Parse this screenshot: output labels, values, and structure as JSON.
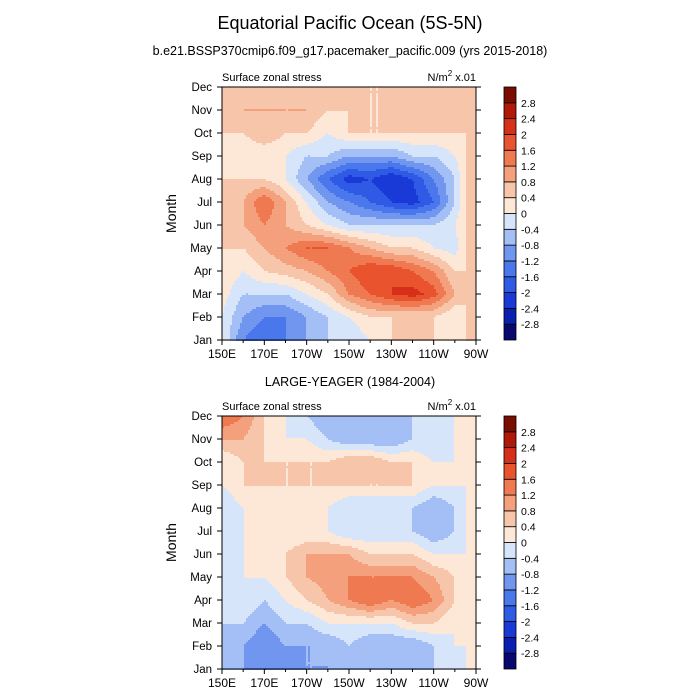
{
  "figure": {
    "title": "Equatorial Pacific Ocean (5S-5N)"
  },
  "colors": {
    "levels": [
      -2.8,
      -2.4,
      -2.0,
      -1.6,
      -1.2,
      -0.8,
      -0.4,
      0.0,
      0.4,
      0.8,
      1.2,
      1.6,
      2.0,
      2.4,
      2.8
    ],
    "fills": [
      "#08086e",
      "#0a1fb0",
      "#1a3ad8",
      "#2f5ae6",
      "#4a78ec",
      "#7096f0",
      "#a3bff5",
      "#d6e5fa",
      "#fde8d8",
      "#f7c6aa",
      "#f4a07c",
      "#ef7a52",
      "#e9542e",
      "#d6301a",
      "#b01808",
      "#7a0c02"
    ]
  },
  "chart_data": [
    {
      "type": "heatmap",
      "title": "b.e21.BSSP370cmip6.f09_g17.pacemaker_pacific.009 (yrs 2015-2018)",
      "left_label": "Surface zonal stress",
      "right_label_base": "N/m",
      "right_label_exp": "2",
      "right_label_scale": " x.01",
      "ylabel": "Month",
      "x_ticks": [
        "150E",
        "170E",
        "170W",
        "150W",
        "130W",
        "110W",
        "90W"
      ],
      "y_ticks": [
        "Jan",
        "Feb",
        "Mar",
        "Apr",
        "May",
        "Jun",
        "Jul",
        "Aug",
        "Sep",
        "Oct",
        "Nov",
        "Dec"
      ],
      "xlim": [
        150,
        270
      ],
      "colorbar_labels": [
        "2.8",
        "2.4",
        "2",
        "1.6",
        "1.2",
        "0.8",
        "0.4",
        "0",
        "-0.4",
        "-0.8",
        "-1.2",
        "-1.6",
        "-2",
        "-2.4",
        "-2.8"
      ],
      "lon_nodes": [
        150,
        160,
        170,
        180,
        190,
        200,
        210,
        220,
        230,
        240,
        250,
        260,
        265
      ],
      "values": [
        [
          0.0,
          -1.2,
          -1.6,
          -1.2,
          -0.8,
          -0.4,
          -0.4,
          0.0,
          0.4,
          0.4,
          0.4,
          0.0,
          0.4
        ],
        [
          0.0,
          -0.8,
          -1.2,
          -1.2,
          -0.8,
          -0.4,
          0.0,
          0.4,
          0.4,
          0.4,
          0.4,
          0.0,
          0.4
        ],
        [
          0.2,
          -0.4,
          -0.4,
          -0.4,
          0.0,
          0.4,
          1.2,
          1.6,
          2.0,
          2.2,
          1.8,
          0.8,
          0.4
        ],
        [
          0.4,
          0.0,
          0.4,
          0.6,
          0.8,
          1.2,
          1.6,
          2.0,
          2.0,
          1.6,
          1.2,
          0.4,
          0.4
        ],
        [
          0.4,
          0.4,
          0.8,
          1.2,
          1.6,
          1.6,
          1.2,
          0.8,
          0.4,
          0.4,
          0.0,
          -0.2,
          0.4
        ],
        [
          0.4,
          0.8,
          1.2,
          0.8,
          0.4,
          0.0,
          -0.4,
          -0.4,
          -0.4,
          -0.4,
          -0.4,
          0.0,
          0.4
        ],
        [
          0.4,
          0.8,
          1.6,
          0.8,
          0.0,
          -0.8,
          -1.2,
          -1.6,
          -2.0,
          -2.2,
          -1.6,
          -0.4,
          0.4
        ],
        [
          0.4,
          0.4,
          0.4,
          0.0,
          -0.8,
          -1.6,
          -2.2,
          -2.0,
          -2.4,
          -2.0,
          -1.2,
          -0.4,
          0.4
        ],
        [
          0.4,
          0.0,
          0.0,
          0.0,
          -0.4,
          -0.4,
          -0.8,
          -0.8,
          -0.8,
          -0.4,
          -0.4,
          0.0,
          0.4
        ],
        [
          0.4,
          0.4,
          0.8,
          0.4,
          0.4,
          0.0,
          0.4,
          0.4,
          0.4,
          0.4,
          0.4,
          0.4,
          0.4
        ],
        [
          0.4,
          0.8,
          0.8,
          0.8,
          0.8,
          0.4,
          0.4,
          0.4,
          0.4,
          0.4,
          0.4,
          0.8,
          0.4
        ],
        [
          0.4,
          0.4,
          0.4,
          0.4,
          0.4,
          0.4,
          0.4,
          0.4,
          0.4,
          0.4,
          0.4,
          0.4,
          0.4
        ]
      ]
    },
    {
      "type": "heatmap",
      "title": "LARGE-YEAGER (1984-2004)",
      "left_label": "Surface zonal stress",
      "right_label_base": "N/m",
      "right_label_exp": "2",
      "right_label_scale": " x.01",
      "ylabel": "Month",
      "x_ticks": [
        "150E",
        "170E",
        "170W",
        "150W",
        "130W",
        "110W",
        "90W"
      ],
      "y_ticks": [
        "Jan",
        "Feb",
        "Mar",
        "Apr",
        "May",
        "Jun",
        "Jul",
        "Aug",
        "Sep",
        "Oct",
        "Nov",
        "Dec"
      ],
      "xlim": [
        150,
        270
      ],
      "colorbar_labels": [
        "2.8",
        "2.4",
        "2",
        "1.6",
        "1.2",
        "0.8",
        "0.4",
        "0",
        "-0.4",
        "-0.8",
        "-1.2",
        "-1.6",
        "-2",
        "-2.4",
        "-2.8"
      ],
      "lon_nodes": [
        150,
        160,
        170,
        180,
        190,
        200,
        210,
        220,
        230,
        240,
        250,
        260,
        265
      ],
      "values": [
        [
          -0.4,
          -0.8,
          -1.2,
          -1.2,
          -0.8,
          -0.8,
          -0.8,
          -0.8,
          -0.4,
          -0.8,
          -0.4,
          -0.4,
          0.0
        ],
        [
          -0.4,
          -0.8,
          -1.2,
          -0.8,
          -0.8,
          -0.8,
          -0.4,
          -0.8,
          -0.8,
          -0.8,
          -0.4,
          0.0,
          0.0
        ],
        [
          -0.4,
          -0.4,
          -0.8,
          -0.4,
          -0.4,
          0.0,
          0.0,
          0.0,
          0.0,
          0.4,
          0.4,
          0.0,
          0.0
        ],
        [
          -0.4,
          0.0,
          -0.4,
          0.0,
          0.4,
          0.8,
          1.2,
          1.6,
          1.2,
          1.6,
          1.2,
          0.4,
          0.0
        ],
        [
          -0.4,
          0.0,
          0.0,
          0.4,
          0.8,
          1.0,
          1.2,
          1.2,
          1.2,
          1.2,
          0.8,
          0.4,
          0.0
        ],
        [
          -0.2,
          0.0,
          0.4,
          0.4,
          0.8,
          0.8,
          0.8,
          0.4,
          0.4,
          0.4,
          0.0,
          0.0,
          0.0
        ],
        [
          -0.4,
          0.0,
          0.0,
          0.0,
          0.0,
          0.0,
          -0.4,
          -0.4,
          -0.4,
          -0.4,
          -0.8,
          -0.4,
          0.0
        ],
        [
          -0.4,
          0.0,
          0.0,
          0.0,
          0.0,
          0.0,
          -0.4,
          -0.4,
          -0.4,
          -0.4,
          -0.8,
          -0.4,
          0.0
        ],
        [
          0.0,
          0.4,
          0.4,
          0.4,
          0.4,
          0.4,
          0.4,
          0.4,
          0.4,
          0.4,
          0.0,
          0.0,
          0.0
        ],
        [
          0.0,
          0.4,
          0.4,
          0.4,
          0.4,
          0.4,
          0.8,
          0.8,
          0.4,
          0.4,
          0.0,
          0.0,
          0.0
        ],
        [
          0.8,
          0.8,
          0.4,
          0.0,
          0.0,
          -0.4,
          -0.8,
          -0.8,
          -0.8,
          -0.4,
          -0.4,
          0.0,
          0.0
        ],
        [
          1.6,
          1.2,
          0.4,
          0.0,
          -0.4,
          -0.8,
          -0.8,
          -0.8,
          -0.8,
          -0.4,
          -0.4,
          0.0,
          0.0
        ]
      ]
    }
  ]
}
